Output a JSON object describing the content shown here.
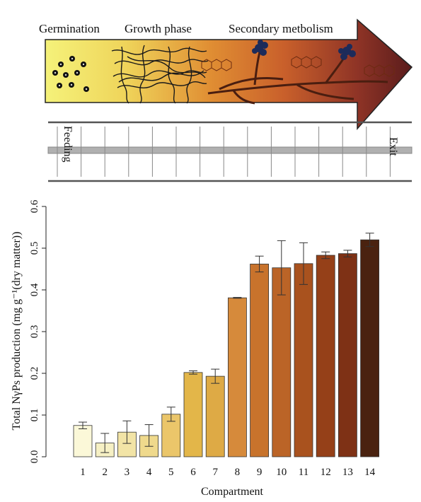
{
  "process": {
    "phases": [
      "Germination",
      "Growth phase",
      "Secondary metbolism"
    ],
    "feeding_label": "Feeding",
    "exit_label": "Exit"
  },
  "chart_data": {
    "type": "bar",
    "categories": [
      "1",
      "2",
      "3",
      "4",
      "5",
      "6",
      "7",
      "8",
      "9",
      "10",
      "11",
      "12",
      "13",
      "14"
    ],
    "values": [
      0.075,
      0.033,
      0.059,
      0.051,
      0.102,
      0.202,
      0.193,
      0.381,
      0.462,
      0.453,
      0.463,
      0.483,
      0.487,
      0.52
    ],
    "errors": [
      0.008,
      0.023,
      0.027,
      0.026,
      0.017,
      0.004,
      0.017,
      0.001,
      0.019,
      0.065,
      0.05,
      0.008,
      0.008,
      0.016
    ],
    "colors": [
      "#fbf8d8",
      "#f6f0c4",
      "#f2e4a6",
      "#efd98c",
      "#ebc66a",
      "#e3b649",
      "#deaa45",
      "#d68a3b",
      "#c8732c",
      "#bb6427",
      "#a9521e",
      "#954018",
      "#7e3115",
      "#4a2210"
    ],
    "xlabel": "Compartment",
    "ylabel": "Total NγPs production (mg g⁻¹(dry matter))",
    "yticks": [
      "0.0",
      "0.1",
      "0.2",
      "0.3",
      "0.4",
      "0.5",
      "0.6"
    ],
    "ylim": [
      0,
      0.6
    ],
    "grid": false
  }
}
